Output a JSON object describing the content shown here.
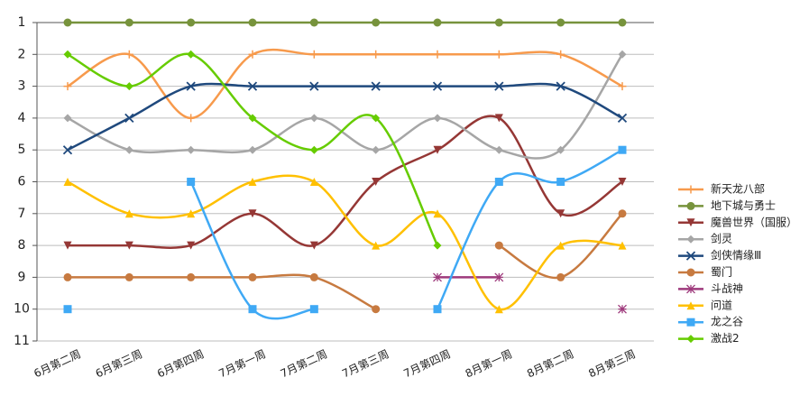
{
  "chart_data": {
    "type": "line",
    "categories": [
      "6月第二周",
      "6月第三周",
      "6月第四周",
      "7月第一周",
      "7月第二周",
      "7月第三周",
      "7月第四周",
      "8月第一周",
      "8月第二周",
      "8月第三周"
    ],
    "ylim": [
      1,
      11
    ],
    "yticks": [
      1,
      2,
      3,
      4,
      5,
      6,
      7,
      8,
      9,
      10,
      11
    ],
    "y_inverted": true,
    "grid": true,
    "smooth": true,
    "legend": "right",
    "series": [
      {
        "name": "新天龙八部",
        "color": "#f79a4c",
        "marker": "plus",
        "values": [
          3,
          2,
          4,
          2,
          2,
          2,
          2,
          2,
          2,
          3
        ]
      },
      {
        "name": "地下城与勇士",
        "color": "#77933c",
        "marker": "circle",
        "values": [
          1,
          1,
          1,
          1,
          1,
          1,
          1,
          1,
          1,
          1
        ]
      },
      {
        "name": "魔兽世界（国服）",
        "color": "#953735",
        "marker": "triangle-down",
        "values": [
          8,
          8,
          8,
          7,
          8,
          6,
          5,
          4,
          7,
          6
        ]
      },
      {
        "name": "剑灵",
        "color": "#a6a6a6",
        "marker": "diamond",
        "values": [
          4,
          5,
          5,
          5,
          4,
          5,
          4,
          5,
          5,
          2
        ]
      },
      {
        "name": "剑侠情缘Ⅲ",
        "color": "#1f497d",
        "marker": "x",
        "values": [
          5,
          4,
          3,
          3,
          3,
          3,
          3,
          3,
          3,
          4
        ]
      },
      {
        "name": "蜀门",
        "color": "#c77a40",
        "marker": "circle",
        "values": [
          9,
          9,
          9,
          9,
          9,
          10,
          null,
          8,
          9,
          7
        ]
      },
      {
        "name": "斗战神",
        "color": "#9e3a7c",
        "marker": "star",
        "values": [
          null,
          null,
          null,
          null,
          null,
          null,
          9,
          9,
          null,
          10
        ]
      },
      {
        "name": "问道",
        "color": "#ffc000",
        "marker": "triangle",
        "values": [
          6,
          7,
          7,
          6,
          6,
          8,
          7,
          10,
          8,
          8
        ]
      },
      {
        "name": "龙之谷",
        "color": "#3fa9f5",
        "marker": "square",
        "values": [
          10,
          null,
          6,
          10,
          10,
          null,
          10,
          6,
          6,
          5
        ]
      },
      {
        "name": "激战2",
        "color": "#66cc00",
        "marker": "diamond",
        "values": [
          2,
          3,
          2,
          4,
          5,
          4,
          8,
          null,
          null,
          null
        ]
      }
    ]
  }
}
